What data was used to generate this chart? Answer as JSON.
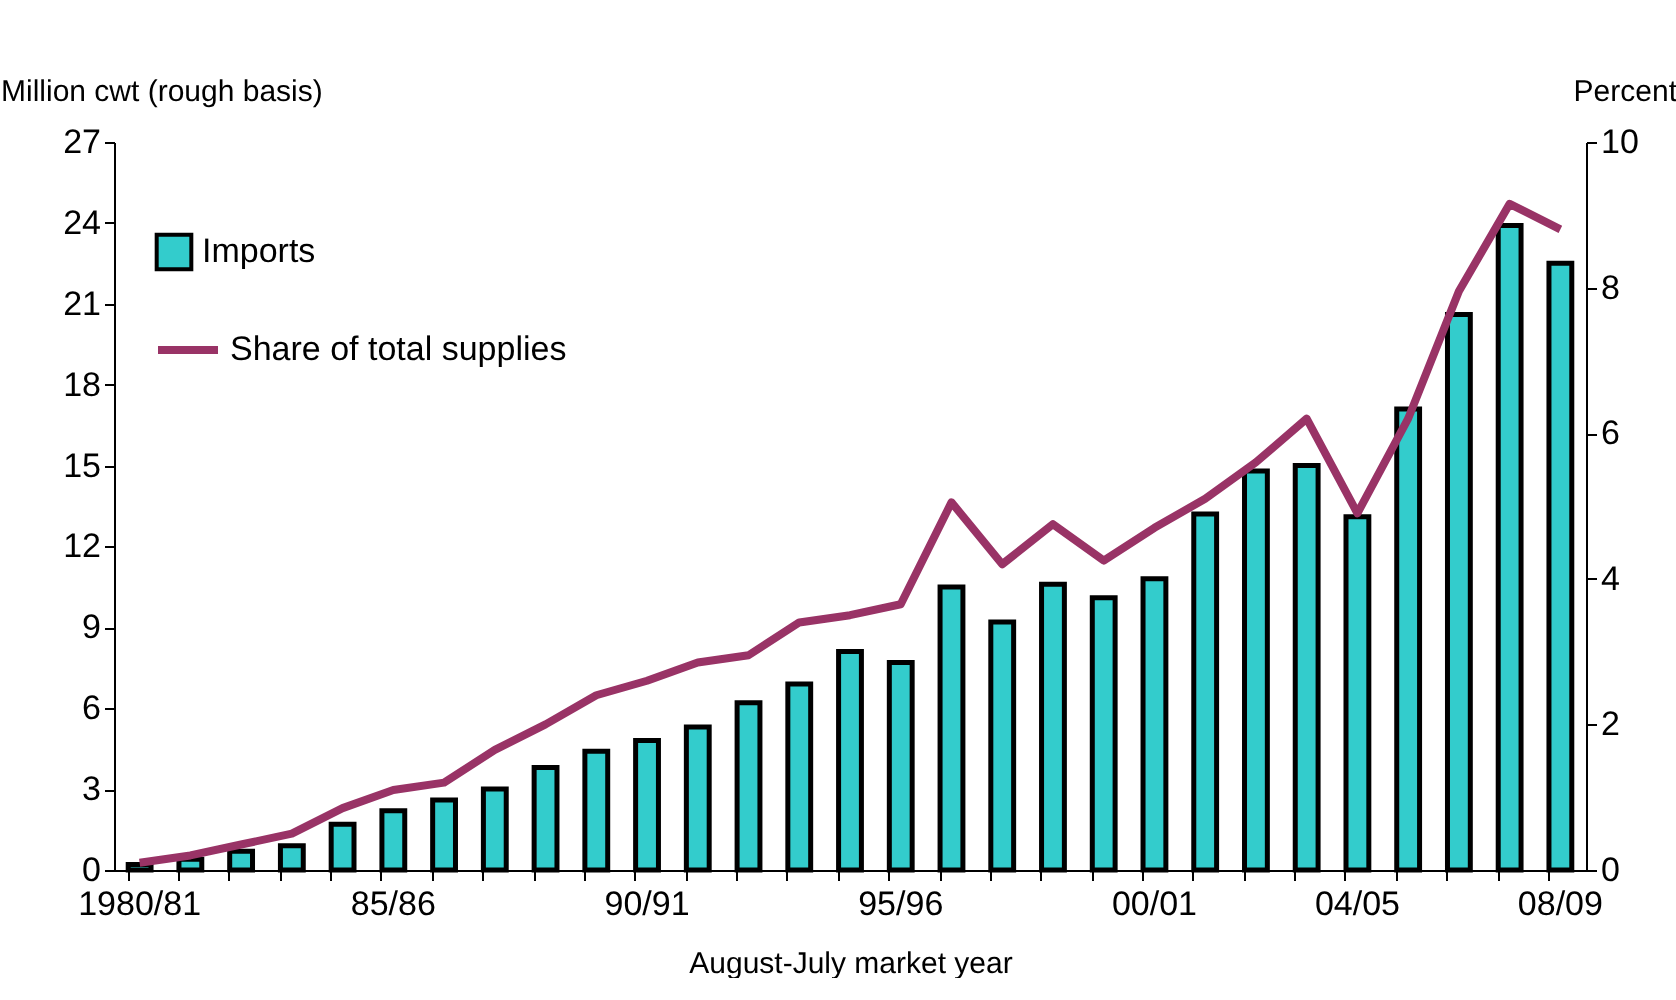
{
  "chart_data": {
    "type": "bar",
    "xlabel": "August-July market year",
    "ylabel": "Million cwt (rough basis)",
    "y2label": "Percent",
    "categories": [
      "1980/81",
      null,
      null,
      null,
      null,
      "85/86",
      null,
      null,
      null,
      null,
      "90/91",
      null,
      null,
      null,
      null,
      "95/96",
      null,
      null,
      null,
      null,
      "00/01",
      null,
      null,
      null,
      "04/05",
      null,
      null,
      null,
      "08/09"
    ],
    "series": [
      {
        "name": "Imports",
        "color": "#33cccc",
        "values": [
          0.2,
          0.4,
          0.7,
          0.9,
          1.7,
          2.2,
          2.6,
          3.0,
          3.8,
          4.4,
          4.8,
          5.3,
          6.2,
          6.9,
          8.1,
          7.7,
          10.5,
          9.2,
          10.6,
          10.1,
          10.8,
          13.2,
          14.8,
          15.0,
          13.1,
          17.1,
          20.6,
          23.9,
          22.5
        ]
      },
      {
        "name": "Share of total supplies",
        "type": "line",
        "axis": "y2",
        "color": "#993366",
        "values": [
          0.1,
          0.2,
          0.35,
          0.5,
          0.85,
          1.1,
          1.2,
          1.65,
          2.0,
          2.4,
          2.6,
          2.85,
          2.95,
          3.4,
          3.5,
          3.65,
          5.05,
          4.2,
          4.75,
          4.25,
          4.7,
          5.1,
          5.6,
          6.2,
          4.9,
          6.2,
          7.95,
          9.15,
          8.8
        ]
      }
    ],
    "ylim": [
      0,
      27
    ],
    "yticks": [
      0,
      3,
      6,
      9,
      12,
      15,
      18,
      21,
      24,
      27
    ],
    "y2lim": [
      0,
      10
    ],
    "y2ticks": [
      0,
      2,
      4,
      6,
      8,
      10
    ],
    "grid": false,
    "legend": "top left"
  }
}
